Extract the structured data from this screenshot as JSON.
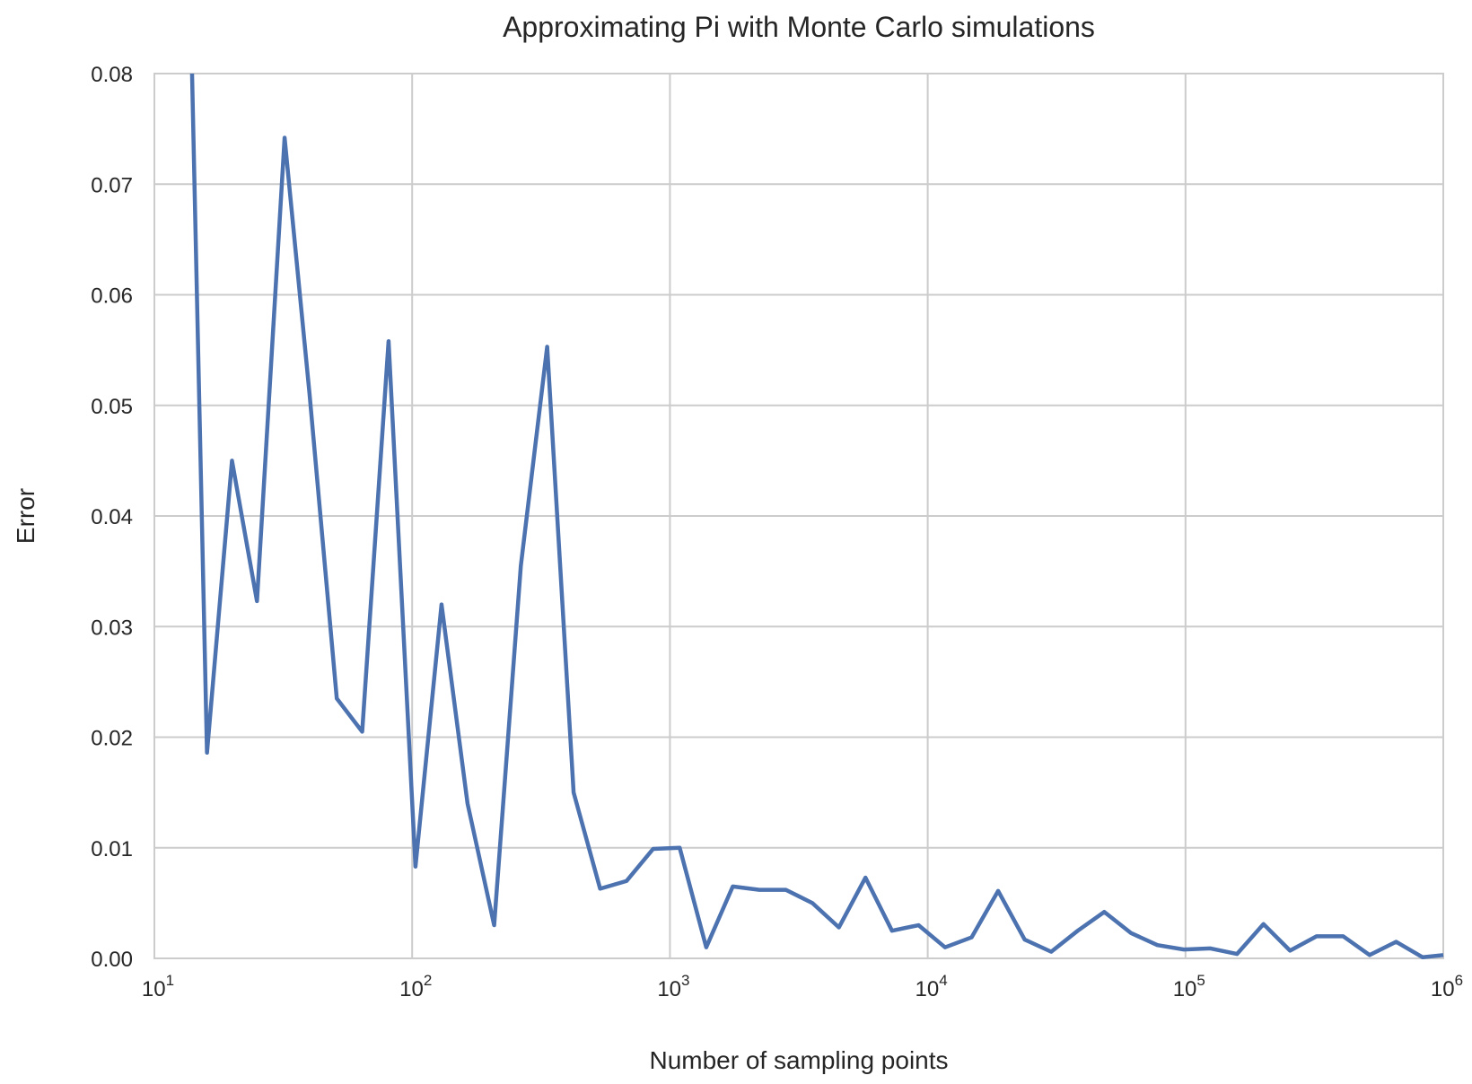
{
  "chart_data": {
    "type": "line",
    "title": "Approximating Pi with Monte Carlo simulations",
    "xlabel": "Number of sampling points",
    "ylabel": "Error",
    "xscale": "log",
    "xlim": [
      10,
      1000000
    ],
    "ylim": [
      0,
      0.08
    ],
    "grid": true,
    "line_color": "#4c72b0",
    "grid_color": "#cccccc",
    "y_ticks": [
      "0.00",
      "0.01",
      "0.02",
      "0.03",
      "0.04",
      "0.05",
      "0.06",
      "0.07",
      "0.08"
    ],
    "x_ticks": [
      {
        "base": "10",
        "exp": "1"
      },
      {
        "base": "10",
        "exp": "2"
      },
      {
        "base": "10",
        "exp": "3"
      },
      {
        "base": "10",
        "exp": "4"
      },
      {
        "base": "10",
        "exp": "5"
      },
      {
        "base": "10",
        "exp": "6"
      }
    ],
    "series": [
      {
        "x": [
          14,
          16,
          20,
          25,
          32,
          40,
          51,
          64,
          81,
          103,
          130,
          164,
          208,
          264,
          334,
          423,
          536,
          679,
          861,
          1091,
          1383,
          1753,
          2222,
          2816,
          3570,
          4524,
          5734,
          7268,
          9212,
          11676,
          14799,
          18758,
          23775,
          30134,
          38194,
          48410,
          61359,
          77771,
          98573,
          124939,
          158356,
          200715,
          254401,
          322446,
          408690,
          518003,
          656555,
          832164,
          1000000
        ],
        "y": [
          0.08,
          0.0186,
          0.045,
          0.0323,
          0.0742,
          0.051,
          0.0235,
          0.0205,
          0.0558,
          0.0083,
          0.032,
          0.014,
          0.003,
          0.0355,
          0.0553,
          0.015,
          0.0063,
          0.007,
          0.0099,
          0.01,
          0.001,
          0.0065,
          0.0062,
          0.0062,
          0.005,
          0.0028,
          0.0073,
          0.0025,
          0.003,
          0.001,
          0.0019,
          0.0061,
          0.0017,
          0.0006,
          0.0025,
          0.0042,
          0.0023,
          0.0012,
          0.0008,
          0.0009,
          0.0004,
          0.0031,
          0.0007,
          0.002,
          0.002,
          0.0003,
          0.0015,
          0.0001,
          0.0003
        ]
      }
    ]
  }
}
